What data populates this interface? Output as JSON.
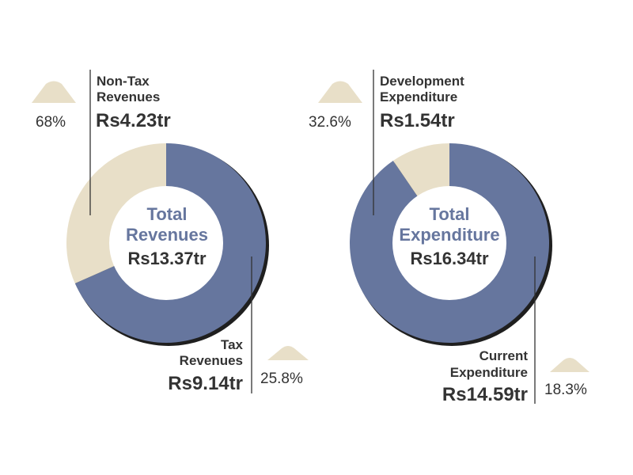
{
  "colors": {
    "primary": "#66769e",
    "secondary": "#e8dfc8",
    "text": "#333333",
    "title": "#66769e"
  },
  "chart_data": [
    {
      "type": "pie",
      "variant": "donut",
      "center_title": [
        "Total",
        "Revenues"
      ],
      "center_value": "Rs13.37tr",
      "unit": "Rs trillion",
      "slices": [
        {
          "name": "Tax Revenues",
          "label_lines": [
            "Tax",
            "Revenues"
          ],
          "value": 9.14,
          "value_label": "Rs9.14tr",
          "change": "25.8%",
          "color": "#66769e"
        },
        {
          "name": "Non-Tax Revenues",
          "label_lines": [
            "Non-Tax",
            "Revenues"
          ],
          "value": 4.23,
          "value_label": "Rs4.23tr",
          "change": "68%",
          "color": "#e8dfc8"
        }
      ]
    },
    {
      "type": "pie",
      "variant": "donut",
      "center_title": [
        "Total",
        "Expenditure"
      ],
      "center_value": "Rs16.34tr",
      "unit": "Rs trillion",
      "slices": [
        {
          "name": "Current Expenditure",
          "label_lines": [
            "Current",
            "Expenditure"
          ],
          "value": 14.59,
          "value_label": "Rs14.59tr",
          "change": "18.3%",
          "color": "#66769e"
        },
        {
          "name": "Development Expenditure",
          "label_lines": [
            "Development",
            "Expenditure"
          ],
          "value": 1.54,
          "value_label": "Rs1.54tr",
          "change": "32.6%",
          "color": "#e8dfc8"
        }
      ]
    }
  ]
}
